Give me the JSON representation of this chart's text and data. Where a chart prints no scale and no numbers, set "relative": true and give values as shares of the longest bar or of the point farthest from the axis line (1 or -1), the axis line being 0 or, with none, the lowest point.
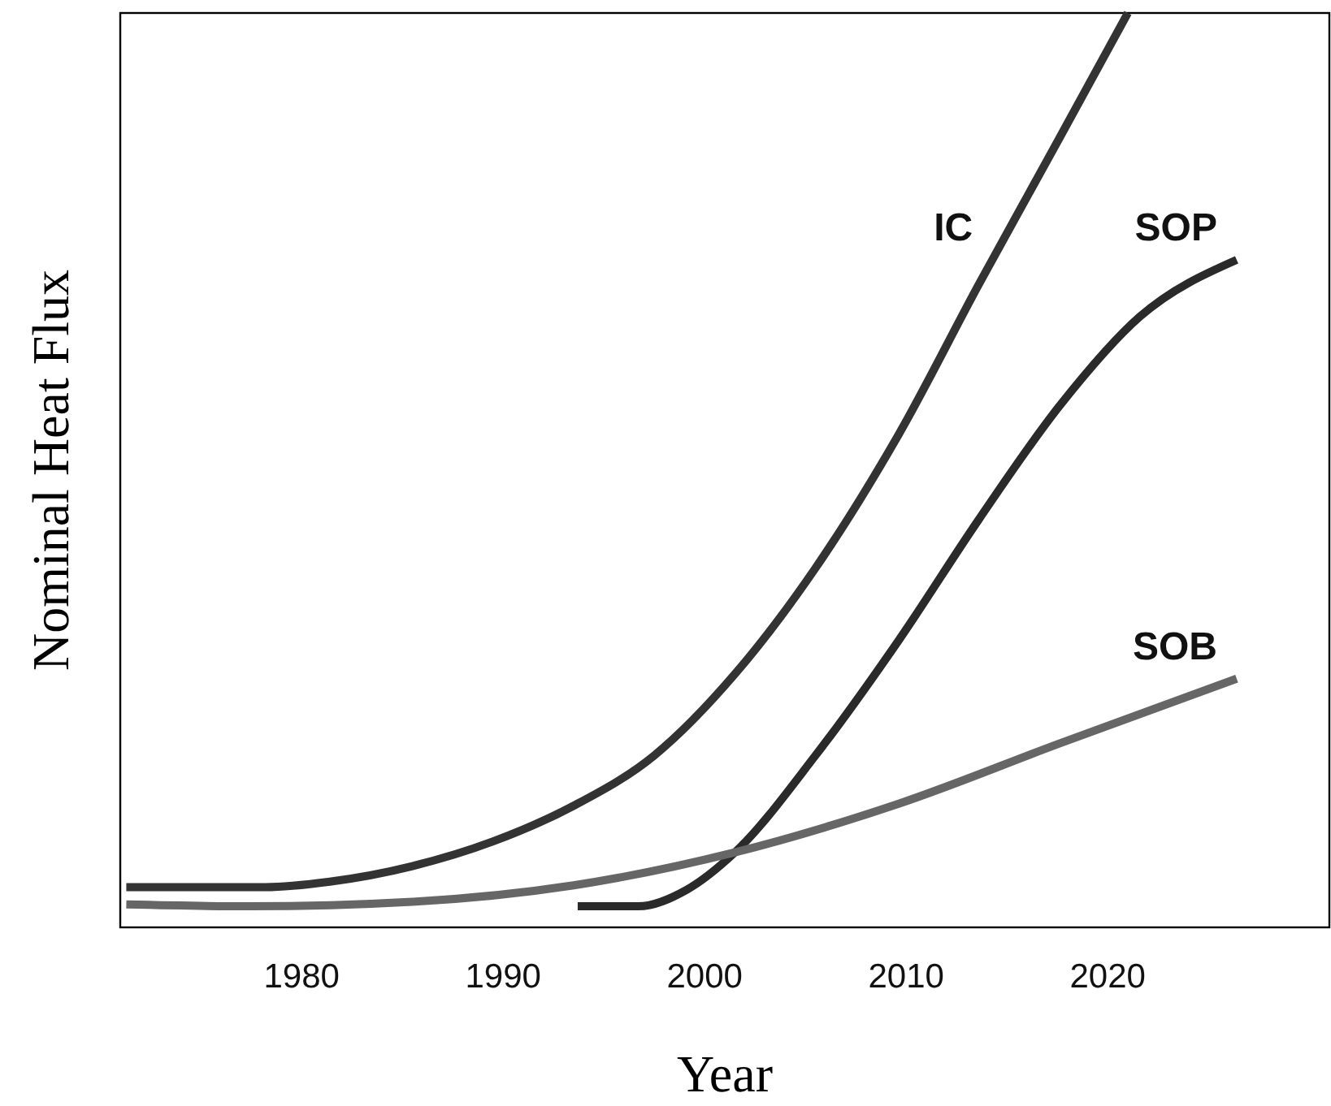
{
  "chart_data": {
    "type": "line",
    "relative": true,
    "xlabel": "Year",
    "ylabel": "Nominal Heat Flux",
    "xlim": [
      1971,
      2031
    ],
    "xticks": [
      1980,
      1990,
      2000,
      2010,
      2020
    ],
    "legend": false,
    "grid": false,
    "marker": "none",
    "line_style": "solid",
    "series": [
      {
        "name": "IC",
        "color": "#333333",
        "x": [
          1971.3,
          1978.2,
          1981.4,
          1985.5,
          1989.5,
          1993.5,
          1997.5,
          2001.5,
          2005.5,
          2009.6,
          2013.6,
          2017.6,
          2021.0
        ],
        "values": [
          0.044,
          0.044,
          0.05,
          0.067,
          0.094,
          0.133,
          0.188,
          0.277,
          0.393,
          0.538,
          0.703,
          0.863,
          1
        ]
      },
      {
        "name": "SOP",
        "color": "#2a2a2a",
        "x": [
          1993.7,
          1996.7,
          1999.1,
          2001.5,
          2005.5,
          2009.6,
          2013.6,
          2017.6,
          2021.6,
          2026.4
        ],
        "values": [
          0.023,
          0.023,
          0.041,
          0.082,
          0.188,
          0.313,
          0.446,
          0.57,
          0.668,
          0.73
        ]
      },
      {
        "name": "SOB",
        "color": "#666666",
        "x": [
          1971.3,
          1977.4,
          1985.5,
          1993.5,
          2001.5,
          2009.6,
          2017.6,
          2026.4
        ],
        "values": [
          0.025,
          0.023,
          0.028,
          0.046,
          0.082,
          0.135,
          0.201,
          0.272
        ]
      }
    ]
  }
}
